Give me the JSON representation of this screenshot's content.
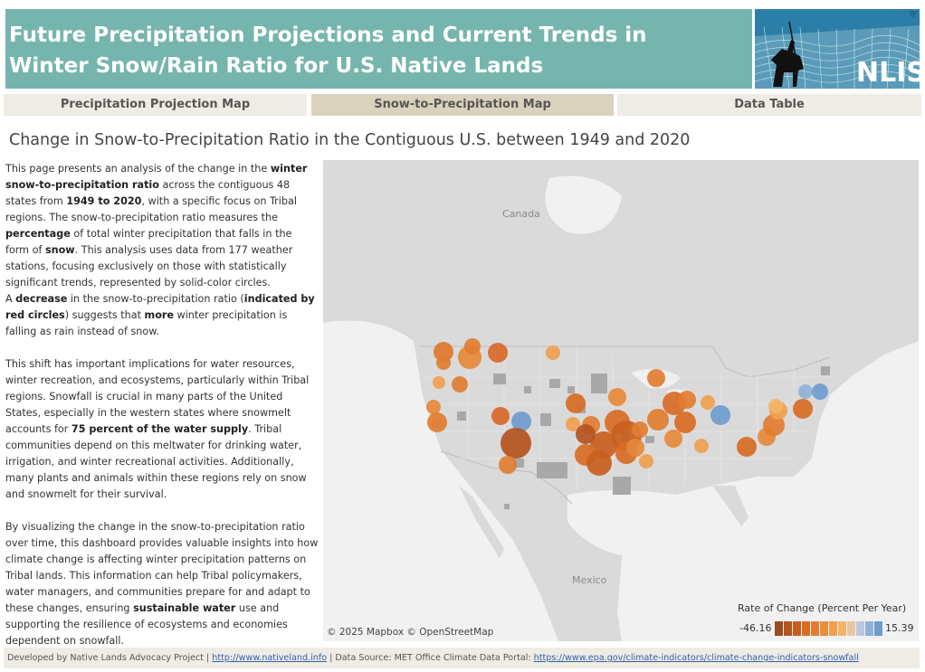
{
  "header": {
    "title": "Future Precipitation Projections and Current Trends in Winter Snow/Rain Ratio for U.S. Native Lands",
    "logo_text": "NLIS"
  },
  "tabs": [
    {
      "label": "Precipitation Projection Map",
      "active": false
    },
    {
      "label": "Snow-to-Precipitation Map",
      "active": true
    },
    {
      "label": "Data Table",
      "active": false
    }
  ],
  "subtitle": "Change in Snow-to-Precipitation Ratio in the Contiguous U.S. between 1949 and 2020",
  "description": {
    "p1": [
      {
        "t": "This page presents an analysis of the change in the ",
        "b": false
      },
      {
        "t": "winter snow-to-precipitation ratio",
        "b": true
      },
      {
        "t": " across the contiguous 48 states from ",
        "b": false
      },
      {
        "t": "1949 to 2020",
        "b": true
      },
      {
        "t": ", with a specific focus on Tribal regions. The snow-to-precipitation ratio measures the ",
        "b": false
      },
      {
        "t": "percentage",
        "b": true
      },
      {
        "t": " of total winter precipitation that falls in the form of ",
        "b": false
      },
      {
        "t": "snow",
        "b": true
      },
      {
        "t": ". This analysis uses data from 177 weather stations, focusing exclusively on those with statistically significant trends, represented by solid-color circles.",
        "b": false
      }
    ],
    "p2": [
      {
        "t": "A ",
        "b": false
      },
      {
        "t": "decrease",
        "b": true
      },
      {
        "t": " in the snow-to-precipitation ratio (",
        "b": false
      },
      {
        "t": "indicated by red circles",
        "b": true
      },
      {
        "t": ") suggests that ",
        "b": false
      },
      {
        "t": "more",
        "b": true
      },
      {
        "t": " winter precipitation is falling as rain instead of snow.",
        "b": false
      }
    ],
    "p3": [
      {
        "t": "This shift has important implications for water resources, winter recreation, and ecosystems, particularly within Tribal regions. Snowfall is crucial in many parts of the United States, especially in the western states where snowmelt accounts for ",
        "b": false
      },
      {
        "t": "75 percent of the water supply",
        "b": true
      },
      {
        "t": ". Tribal communities depend on this meltwater for drinking water, irrigation, and winter recreational activities. Additionally, many plants and animals within these regions rely on snow and snowmelt for their survival.",
        "b": false
      }
    ],
    "p4": [
      {
        "t": "By visualizing the change in the snow-to-precipitation ratio over time, this dashboard provides valuable insights into how climate change is affecting winter precipitation patterns on Tribal lands. This information can help Tribal policymakers, water managers, and communities prepare for and adapt to these changes, ensuring ",
        "b": false
      },
      {
        "t": "sustainable water",
        "b": true
      },
      {
        "t": " use and supporting the resilience of ecosystems and economies dependent on snowfall.",
        "b": false
      }
    ]
  },
  "map": {
    "label_canada": "Canada",
    "label_mexico": "Mexico",
    "attribution": "© 2025 Mapbox  © OpenStreetMap",
    "colors": {
      "land": "#dcdcdc",
      "us_land": "#d6d6d6",
      "water": "#f1f1f1",
      "reservation": "#a9a9a9"
    }
  },
  "legend": {
    "title": "Rate of Change (Percent Per Year)",
    "min": "-46.16",
    "max": "15.39",
    "ramp_colors": [
      "#9c4a21",
      "#b5541f",
      "#c95f1f",
      "#d86d25",
      "#e27d30",
      "#ea8d3c",
      "#f0a04f",
      "#f3b468",
      "#e6c7a3",
      "#b7c9dc",
      "#8fb3d8",
      "#6e9ccf"
    ]
  },
  "footer": {
    "prefix": "Developed by Native Lands Advocacy Project | ",
    "link1": "http://www.nativeland.info",
    "middle": " | Data Source: MET Office Climate Data Portal: ",
    "link2": "https://www.epa.gov/climate-indicators/climate-change-indicators-snowfall"
  }
}
